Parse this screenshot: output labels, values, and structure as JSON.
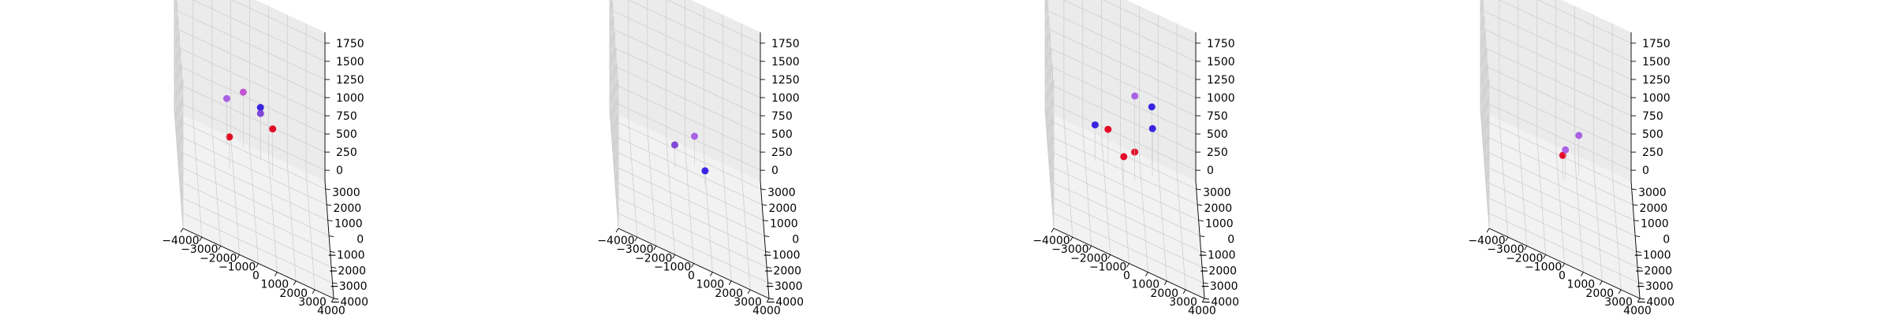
{
  "figure": {
    "background": "#ffffff"
  },
  "style": {
    "pane_colors": {
      "floor": "#f2f2f2",
      "back": "#ebebeb",
      "side": "#e3e3e3"
    },
    "grid_color": "#cfcfcf",
    "point_colors": [
      "#e3001c",
      "#2f19e0",
      "#7a3fd6",
      "#a75ae6",
      "#c04bd2"
    ]
  },
  "chart_data": [
    {
      "type": "scatter3d",
      "axes": {
        "x_ticks": [
          -4000,
          -3000,
          -2000,
          -1000,
          0,
          1000,
          2000,
          3000,
          4000
        ],
        "y_ticks": [
          -4000,
          -3000,
          -2000,
          -1000,
          0,
          1000,
          2000,
          3000
        ],
        "z_ticks": [
          0,
          250,
          500,
          750,
          1000,
          1250,
          1500,
          1750
        ],
        "xlim": [
          -4000,
          4000
        ],
        "ylim": [
          -4000,
          3500
        ],
        "zlim": [
          -150,
          1900
        ],
        "grid": true
      },
      "points": [
        {
          "x": -1250,
          "y": 600,
          "z": 450,
          "c": 0
        },
        {
          "x": -1300,
          "y": 2100,
          "z": 650,
          "c": 3
        },
        {
          "x": -400,
          "y": 2500,
          "z": 760,
          "c": 4
        },
        {
          "x": 500,
          "y": 2300,
          "z": 700,
          "c": 1
        },
        {
          "x": 500,
          "y": 2200,
          "z": 640,
          "c": 2
        },
        {
          "x": 1100,
          "y": 1500,
          "z": 650,
          "c": 0
        }
      ]
    },
    {
      "type": "scatter3d",
      "axes": {
        "x_ticks": [
          -4000,
          -3000,
          -2000,
          -1000,
          0,
          1000,
          2000,
          3000,
          4000
        ],
        "y_ticks": [
          -4000,
          -3000,
          -2000,
          -1000,
          0,
          1000,
          2000,
          3000
        ],
        "z_ticks": [
          0,
          250,
          500,
          750,
          1000,
          1250,
          1500,
          1750
        ],
        "xlim": [
          -4000,
          4000
        ],
        "ylim": [
          -4000,
          3500
        ],
        "zlim": [
          -150,
          1900
        ],
        "grid": true
      },
      "points": [
        {
          "x": -700,
          "y": 1000,
          "z": 320,
          "c": 2
        },
        {
          "x": 400,
          "y": 1800,
          "z": 400,
          "c": 3
        },
        {
          "x": 900,
          "y": 800,
          "z": 200,
          "c": 1
        }
      ]
    },
    {
      "type": "scatter3d",
      "axes": {
        "x_ticks": [
          -4000,
          -3000,
          -2000,
          -1000,
          0,
          1000,
          2000,
          3000,
          4000
        ],
        "y_ticks": [
          -4000,
          -3000,
          -2000,
          -1000,
          0,
          1000,
          2000,
          3000
        ],
        "z_ticks": [
          0,
          250,
          500,
          750,
          1000,
          1250,
          1500,
          1750
        ],
        "xlim": [
          -4000,
          4000
        ],
        "ylim": [
          -4000,
          3500
        ],
        "zlim": [
          -150,
          1900
        ],
        "grid": true
      },
      "points": [
        {
          "x": -1500,
          "y": 1000,
          "z": 500,
          "c": 1
        },
        {
          "x": -800,
          "y": 1200,
          "z": 480,
          "c": 0
        },
        {
          "x": 0,
          "y": 600,
          "z": 330,
          "c": 0
        },
        {
          "x": 600,
          "y": 900,
          "z": 400,
          "c": 0
        },
        {
          "x": 700,
          "y": 2500,
          "z": 840,
          "c": 3
        },
        {
          "x": 1600,
          "y": 2400,
          "z": 820,
          "c": 1
        },
        {
          "x": 1600,
          "y": 1800,
          "z": 650,
          "c": 1
        }
      ]
    },
    {
      "type": "scatter3d",
      "axes": {
        "x_ticks": [
          -4000,
          -3000,
          -2000,
          -1000,
          0,
          1000,
          2000,
          3000,
          4000
        ],
        "y_ticks": [
          -4000,
          -3000,
          -2000,
          -1000,
          0,
          1000,
          2000,
          3000
        ],
        "z_ticks": [
          0,
          250,
          500,
          750,
          1000,
          1250,
          1500,
          1750
        ],
        "xlim": [
          -4000,
          4000
        ],
        "ylim": [
          -4000,
          3500
        ],
        "zlim": [
          -150,
          1900
        ],
        "grid": true
      },
      "points": [
        {
          "x": 200,
          "y": 700,
          "z": 350,
          "c": 0
        },
        {
          "x": 350,
          "y": 900,
          "z": 400,
          "c": 3
        },
        {
          "x": 1100,
          "y": 1500,
          "z": 560,
          "c": 3
        }
      ]
    }
  ]
}
